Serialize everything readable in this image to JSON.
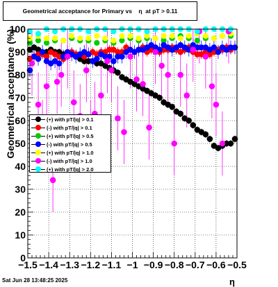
{
  "title": "Geometrical acceptance for Primary vs    η  at pT > 0.11",
  "footer": "Sat Jun 28 13:48:25 2025",
  "chart_data": {
    "type": "scatter",
    "title": "Geometrical acceptance for Primary vs    η  at pT > 0.11",
    "xlabel": "η",
    "ylabel": "Geometrical acceptance (%)",
    "xlim": [
      -1.5,
      -0.5
    ],
    "ylim": [
      0,
      100
    ],
    "xticks": [
      "−1.5",
      "−1.4",
      "−1.3",
      "−1.2",
      "−1.1",
      "−1",
      "−0.9",
      "−0.8",
      "−0.7",
      "−0.6",
      "−0.5"
    ],
    "yticks": [
      "0",
      "10",
      "20",
      "30",
      "40",
      "50",
      "60",
      "70",
      "80",
      "90",
      "100"
    ],
    "legend_position": "left-middle",
    "series": [
      {
        "name": "(+) with pT/|q| > 0.1",
        "color": "#000000",
        "x": [
          -1.49,
          -1.47,
          -1.45,
          -1.43,
          -1.41,
          -1.39,
          -1.37,
          -1.35,
          -1.33,
          -1.31,
          -1.29,
          -1.27,
          -1.25,
          -1.23,
          -1.21,
          -1.19,
          -1.17,
          -1.15,
          -1.13,
          -1.11,
          -1.09,
          -1.07,
          -1.05,
          -1.03,
          -1.01,
          -0.99,
          -0.97,
          -0.95,
          -0.93,
          -0.91,
          -0.89,
          -0.87,
          -0.85,
          -0.83,
          -0.81,
          -0.79,
          -0.77,
          -0.75,
          -0.73,
          -0.71,
          -0.69,
          -0.67,
          -0.65,
          -0.63,
          -0.61,
          -0.59,
          -0.57,
          -0.55,
          -0.53,
          -0.51
        ],
        "y": [
          91,
          92,
          91,
          90,
          90,
          91,
          90,
          90,
          89,
          88,
          89,
          88,
          87,
          86,
          86,
          86,
          85,
          85,
          84,
          83,
          82,
          81,
          79,
          78,
          77,
          76,
          75,
          74,
          73,
          72,
          71,
          70,
          68,
          67,
          66,
          64,
          63,
          61,
          60,
          58,
          56,
          55,
          54,
          52,
          49,
          48,
          49,
          50,
          50,
          52
        ]
      },
      {
        "name": "(-) with pT/|q| > 0.1",
        "color": "#ff0000",
        "x": [
          -1.49,
          -1.47,
          -1.45,
          -1.43,
          -1.41,
          -1.39,
          -1.37,
          -1.35,
          -1.33,
          -1.31,
          -1.29,
          -1.27,
          -1.25,
          -1.23,
          -1.21,
          -1.19,
          -1.17,
          -1.15,
          -1.13,
          -1.11,
          -1.09,
          -1.07,
          -1.05,
          -1.03,
          -1.01,
          -0.99,
          -0.97,
          -0.95,
          -0.93,
          -0.91,
          -0.89,
          -0.87,
          -0.85,
          -0.83,
          -0.81,
          -0.79,
          -0.77,
          -0.75,
          -0.73,
          -0.71,
          -0.69,
          -0.67,
          -0.65,
          -0.63,
          -0.61,
          -0.59,
          -0.57,
          -0.55,
          -0.53,
          -0.51
        ],
        "y": [
          87,
          88,
          89,
          89,
          88,
          90,
          89,
          88,
          87,
          88,
          90,
          89,
          89,
          88,
          89,
          90,
          89,
          90,
          90,
          91,
          91,
          90,
          90,
          92,
          91,
          90,
          91,
          92,
          90,
          91,
          92,
          90,
          91,
          91,
          92,
          91,
          90,
          91,
          92,
          90,
          89,
          89,
          90,
          89,
          90,
          91,
          91,
          92,
          91,
          92
        ]
      },
      {
        "name": "(+) with pT/|q| > 0.5",
        "color": "#00cc00",
        "x": [
          -1.49,
          -1.45,
          -1.41,
          -1.37,
          -1.33,
          -1.29,
          -1.25,
          -1.21,
          -1.17,
          -1.13,
          -1.09,
          -1.05,
          -1.01,
          -0.97,
          -0.93,
          -0.89,
          -0.85,
          -0.81,
          -0.77,
          -0.73,
          -0.69,
          -0.65,
          -0.61,
          -0.57,
          -0.53
        ],
        "y": [
          94,
          95,
          94,
          95,
          95,
          96,
          95,
          95,
          94,
          95,
          94,
          95,
          96,
          95,
          96,
          96,
          95,
          96,
          97,
          96,
          95,
          96,
          96,
          97,
          97
        ]
      },
      {
        "name": "(-) with pT/|q| > 0.5",
        "color": "#0000ff",
        "x": [
          -1.49,
          -1.47,
          -1.45,
          -1.43,
          -1.41,
          -1.39,
          -1.37,
          -1.35,
          -1.33,
          -1.31,
          -1.29,
          -1.27,
          -1.25,
          -1.23,
          -1.21,
          -1.19,
          -1.17,
          -1.15,
          -1.13,
          -1.11,
          -1.09,
          -1.07,
          -1.05,
          -1.03,
          -1.01,
          -0.99,
          -0.97,
          -0.95,
          -0.93,
          -0.91,
          -0.89,
          -0.87,
          -0.85,
          -0.83,
          -0.81,
          -0.79,
          -0.77,
          -0.75,
          -0.73,
          -0.71,
          -0.69,
          -0.67,
          -0.65,
          -0.63,
          -0.61,
          -0.59,
          -0.57,
          -0.55,
          -0.53,
          -0.51
        ],
        "y": [
          82,
          88,
          87,
          90,
          86,
          85,
          86,
          85,
          88,
          90,
          89,
          88,
          89,
          90,
          89,
          86,
          87,
          89,
          88,
          88,
          86,
          88,
          88,
          90,
          91,
          90,
          91,
          91,
          92,
          93,
          92,
          91,
          93,
          92,
          91,
          92,
          93,
          92,
          91,
          93,
          92,
          92,
          92,
          91,
          92,
          90,
          92,
          91,
          92,
          92
        ]
      },
      {
        "name": "(+) with pT/|q| > 1.0",
        "color": "#ffff00",
        "x": [
          -1.49,
          -1.45,
          -1.41,
          -1.37,
          -1.33,
          -1.29,
          -1.25,
          -1.21,
          -1.17,
          -1.13,
          -1.09,
          -1.05,
          -1.01,
          -0.97,
          -0.93,
          -0.89,
          -0.85,
          -0.81,
          -0.77,
          -0.73,
          -0.69,
          -0.65,
          -0.61,
          -0.57,
          -0.53
        ],
        "y": [
          96,
          97,
          96,
          96,
          95,
          97,
          96,
          96,
          97,
          96,
          95,
          97,
          97,
          96,
          97,
          96,
          97,
          97,
          96,
          97,
          98,
          97,
          96,
          97,
          98
        ]
      },
      {
        "name": "(-) with pT/|q| > 1.0",
        "color": "#ff00ff",
        "x": [
          -1.48,
          -1.45,
          -1.43,
          -1.41,
          -1.38,
          -1.36,
          -1.34,
          -1.31,
          -1.28,
          -1.25,
          -1.22,
          -1.2,
          -1.18,
          -1.15,
          -1.12,
          -1.1,
          -1.07,
          -1.04,
          -1.01,
          -0.98,
          -0.95,
          -0.92,
          -0.89,
          -0.86,
          -0.83,
          -0.8,
          -0.77,
          -0.74,
          -0.71,
          -0.68,
          -0.65,
          -0.62,
          -0.6,
          -0.57,
          -0.54
        ],
        "y": [
          85,
          67,
          55,
          75,
          34,
          77,
          80,
          88,
          68,
          62,
          82,
          55,
          63,
          71,
          86,
          82,
          61,
          55,
          88,
          78,
          76,
          57,
          90,
          84,
          80,
          50,
          80,
          71,
          91,
          99,
          88,
          75,
          67,
          50,
          99
        ]
      },
      {
        "name": "(+) with pT/|q| > 2.0",
        "color": "#00ffff",
        "x": [
          -1.49,
          -1.45,
          -1.41,
          -1.37,
          -1.33,
          -1.29,
          -1.25,
          -1.21,
          -1.17,
          -1.13,
          -1.09,
          -1.05,
          -1.01,
          -0.97,
          -0.93,
          -0.89,
          -0.85,
          -0.81,
          -0.77,
          -0.73,
          -0.69,
          -0.65,
          -0.61,
          -0.57,
          -0.53
        ],
        "y": [
          99,
          98,
          100,
          99,
          100,
          100,
          100,
          99,
          100,
          100,
          99,
          100,
          100,
          100,
          99,
          100,
          100,
          100,
          100,
          100,
          99,
          100,
          100,
          100,
          100
        ]
      }
    ]
  }
}
